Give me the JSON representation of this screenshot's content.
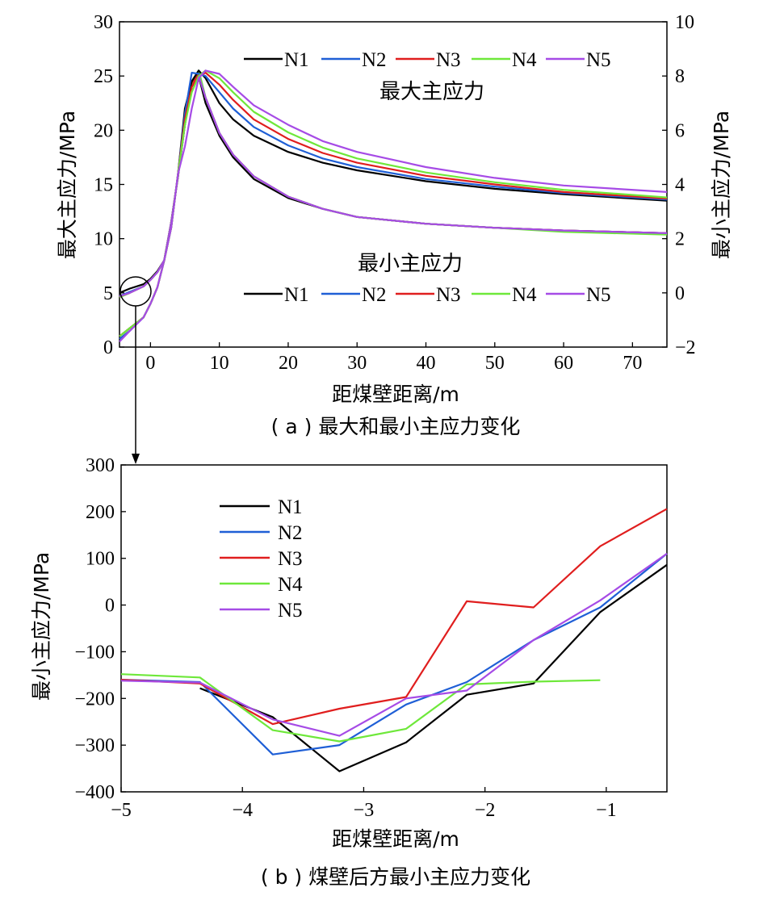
{
  "colors": {
    "N1": "#000000",
    "N2": "#1f5fd6",
    "N3": "#e01e1e",
    "N4": "#6ee83a",
    "N5": "#a64be6"
  },
  "chart_data": [
    {
      "type": "line",
      "caption": "( a ) 最大和最小主应力变化",
      "xlabel": "距煤壁距离/m",
      "ylabel": "最大主应力/MPa",
      "ylabel_right": "最小主应力/MPa",
      "xlim": [
        -4.5,
        75
      ],
      "ylim": [
        0,
        30
      ],
      "ylim_right": [
        -2,
        10
      ],
      "x_ticks": [
        "0",
        "10",
        "20",
        "30",
        "40",
        "50",
        "60",
        "70"
      ],
      "y_ticks": [
        "0",
        "5",
        "10",
        "15",
        "20",
        "25",
        "30"
      ],
      "y_ticks_right": [
        "−2",
        "0",
        "2",
        "4",
        "6",
        "8",
        "10"
      ],
      "legend_max_title": "最大主应力",
      "legend_min_title": "最小主应力",
      "legend_entries": [
        "N1",
        "N2",
        "N3",
        "N4",
        "N5"
      ],
      "max_series": [
        {
          "name": "N1",
          "x": [
            -4.5,
            -3,
            -1,
            0,
            1,
            2,
            3,
            4,
            5,
            6,
            7,
            8,
            10,
            12,
            15,
            20,
            25,
            30,
            40,
            50,
            60,
            75
          ],
          "y": [
            5.0,
            5.4,
            5.8,
            6.3,
            7.0,
            8.0,
            11.0,
            16.0,
            22.0,
            24.5,
            25.5,
            24.8,
            22.5,
            21.0,
            19.5,
            18.0,
            17.0,
            16.3,
            15.3,
            14.6,
            14.1,
            13.5
          ]
        },
        {
          "name": "N2",
          "x": [
            -4.5,
            -3,
            -1,
            0,
            1,
            2,
            3,
            4,
            5,
            6,
            7,
            8,
            10,
            12,
            15,
            20,
            25,
            30,
            40,
            50,
            60,
            75
          ],
          "y": [
            4.7,
            5.1,
            5.6,
            6.2,
            6.9,
            8.0,
            11.0,
            16.0,
            21.5,
            25.3,
            25.2,
            25.0,
            23.5,
            22.0,
            20.3,
            18.6,
            17.4,
            16.6,
            15.5,
            14.8,
            14.2,
            13.6
          ]
        },
        {
          "name": "N3",
          "x": [
            -4.5,
            -3,
            -1,
            0,
            1,
            2,
            3,
            4,
            5,
            6,
            7,
            8,
            10,
            12,
            15,
            20,
            25,
            30,
            40,
            50,
            60,
            75
          ],
          "y": [
            4.6,
            5.0,
            5.6,
            6.2,
            6.9,
            8.0,
            11.0,
            16.0,
            21.0,
            24.0,
            25.0,
            25.3,
            24.2,
            22.8,
            21.0,
            19.2,
            17.9,
            17.0,
            15.8,
            15.0,
            14.3,
            13.7
          ]
        },
        {
          "name": "N4",
          "x": [
            -4.5,
            -3,
            -1,
            0,
            1,
            2,
            3,
            4,
            5,
            6,
            7,
            8,
            10,
            12,
            15,
            20,
            25,
            30,
            40,
            50,
            60,
            75
          ],
          "y": [
            4.6,
            5.0,
            5.6,
            6.2,
            6.9,
            8.0,
            11.0,
            16.0,
            20.5,
            23.5,
            25.0,
            25.5,
            24.8,
            23.5,
            21.7,
            19.8,
            18.4,
            17.4,
            16.1,
            15.2,
            14.5,
            13.8
          ]
        },
        {
          "name": "N5",
          "x": [
            -4.5,
            -3,
            -1,
            0,
            1,
            2,
            3,
            4,
            5,
            6,
            7,
            8,
            10,
            12,
            15,
            20,
            25,
            30,
            40,
            50,
            60,
            75
          ],
          "y": [
            4.7,
            5.0,
            5.6,
            6.2,
            6.9,
            8.0,
            11.0,
            16.0,
            18.5,
            22.0,
            24.8,
            25.5,
            25.2,
            24.0,
            22.3,
            20.5,
            19.0,
            18.0,
            16.6,
            15.6,
            14.9,
            14.3
          ]
        }
      ],
      "min_series": [
        {
          "name": "N1",
          "x": [
            -4.5,
            -3,
            -1,
            0,
            1,
            2,
            3,
            4,
            5,
            6,
            7,
            8,
            10,
            12,
            15,
            20,
            25,
            30,
            40,
            50,
            60,
            75
          ],
          "y": [
            -1.6,
            -1.3,
            -0.9,
            -0.4,
            0.2,
            1.2,
            2.6,
            4.3,
            6.2,
            7.6,
            8.0,
            7.0,
            5.8,
            5.0,
            4.2,
            3.5,
            3.1,
            2.8,
            2.55,
            2.4,
            2.3,
            2.2
          ]
        },
        {
          "name": "N2",
          "x": [
            -4.5,
            -3,
            -1,
            0,
            1,
            2,
            3,
            4,
            5,
            6,
            7,
            8,
            10,
            12,
            15,
            20,
            25,
            30,
            40,
            50,
            60,
            75
          ],
          "y": [
            -1.7,
            -1.4,
            -0.9,
            -0.4,
            0.2,
            1.2,
            2.6,
            4.3,
            6.2,
            7.8,
            8.2,
            7.2,
            5.9,
            5.1,
            4.3,
            3.55,
            3.1,
            2.8,
            2.55,
            2.4,
            2.3,
            2.2
          ]
        },
        {
          "name": "N3",
          "x": [
            -4.5,
            -3,
            -1,
            0,
            1,
            2,
            3,
            4,
            5,
            6,
            7,
            8,
            10,
            12,
            15,
            20,
            25,
            30,
            40,
            50,
            60,
            75
          ],
          "y": [
            -1.6,
            -1.3,
            -0.9,
            -0.4,
            0.2,
            1.2,
            2.6,
            4.3,
            6.2,
            7.7,
            8.1,
            7.2,
            5.9,
            5.1,
            4.3,
            3.55,
            3.1,
            2.8,
            2.55,
            2.4,
            2.3,
            2.2
          ]
        },
        {
          "name": "N4",
          "x": [
            -4.5,
            -3,
            -1,
            0,
            1,
            2,
            3,
            4,
            5,
            6,
            7,
            8,
            10,
            12,
            15,
            20,
            25,
            30,
            40,
            50,
            60,
            75
          ],
          "y": [
            -1.6,
            -1.3,
            -0.9,
            -0.4,
            0.2,
            1.2,
            2.6,
            4.3,
            6.2,
            7.8,
            8.2,
            7.2,
            5.9,
            5.1,
            4.3,
            3.55,
            3.1,
            2.8,
            2.55,
            2.4,
            2.25,
            2.15
          ]
        },
        {
          "name": "N5",
          "x": [
            -4.5,
            -3,
            -1,
            0,
            1,
            2,
            3,
            4,
            5,
            6,
            7,
            8,
            10,
            12,
            15,
            20,
            25,
            30,
            40,
            50,
            60,
            75
          ],
          "y": [
            -1.8,
            -1.4,
            -0.9,
            -0.4,
            0.2,
            1.2,
            2.6,
            4.3,
            6.2,
            7.6,
            8.0,
            7.2,
            5.9,
            5.1,
            4.3,
            3.55,
            3.1,
            2.8,
            2.55,
            2.4,
            2.3,
            2.2
          ]
        }
      ]
    },
    {
      "type": "line",
      "caption": "( b ) 煤壁后方最小主应力变化",
      "xlabel": "距煤壁距离/m",
      "ylabel": "最小主应力/MPa",
      "xlim": [
        -5,
        -0.5
      ],
      "ylim": [
        -400,
        300
      ],
      "x_ticks": [
        "−5",
        "−4",
        "−3",
        "−2",
        "−1"
      ],
      "y_ticks": [
        "−400",
        "−300",
        "−200",
        "−100",
        "0",
        "100",
        "200",
        "300"
      ],
      "legend_entries": [
        "N1",
        "N2",
        "N3",
        "N4",
        "N5"
      ],
      "series": [
        {
          "name": "N1",
          "x": [
            -4.35,
            -3.75,
            -3.2,
            -2.65,
            -2.15,
            -1.6,
            -1.05,
            -0.5
          ],
          "y": [
            -178,
            -240,
            -356,
            -294,
            -192,
            -168,
            -15,
            86
          ]
        },
        {
          "name": "N2",
          "x": [
            -5.0,
            -4.35,
            -3.75,
            -3.2,
            -2.65,
            -2.15,
            -1.6,
            -1.05,
            -0.5
          ],
          "y": [
            -160,
            -165,
            -320,
            -300,
            -213,
            -165,
            -75,
            -5,
            110
          ]
        },
        {
          "name": "N3",
          "x": [
            -5.0,
            -4.35,
            -3.75,
            -3.2,
            -2.65,
            -2.15,
            -1.6,
            -1.05,
            -0.5
          ],
          "y": [
            -160,
            -168,
            -255,
            -222,
            -197,
            8,
            -5,
            126,
            206
          ]
        },
        {
          "name": "N4",
          "x": [
            -5.0,
            -4.35,
            -3.75,
            -3.2,
            -2.65,
            -2.15,
            -1.6,
            -1.05
          ],
          "y": [
            -148,
            -155,
            -268,
            -292,
            -265,
            -170,
            -164,
            -161
          ]
        },
        {
          "name": "N5",
          "x": [
            -5.0,
            -4.35,
            -3.75,
            -3.2,
            -2.65,
            -2.15,
            -1.6,
            -1.05,
            -0.5
          ],
          "y": [
            -162,
            -166,
            -245,
            -280,
            -200,
            -183,
            -75,
            10,
            110
          ]
        }
      ]
    }
  ]
}
